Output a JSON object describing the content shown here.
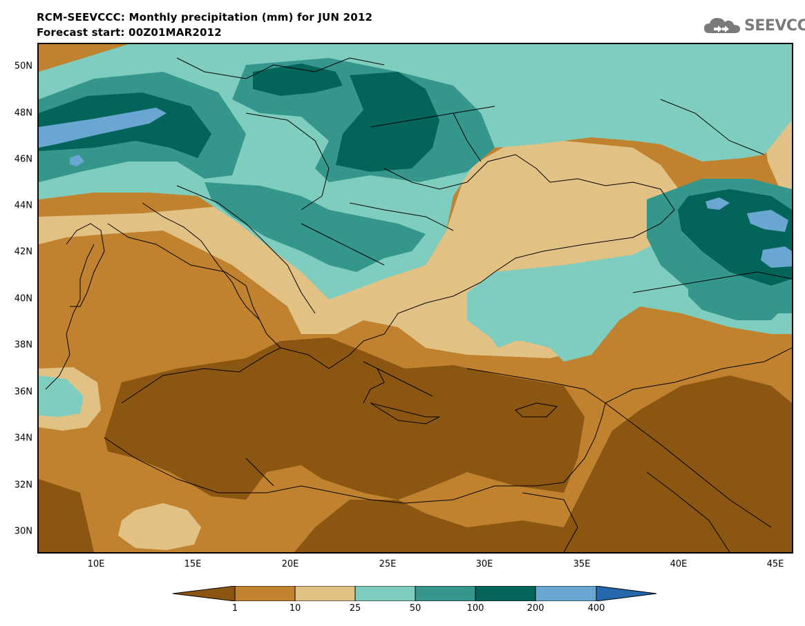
{
  "title": {
    "line1": "RCM-SEEVCCC: Monthly precipitation (mm) for JUN 2012",
    "line2": "Forecast start: 00Z01MAR2012"
  },
  "logo": {
    "text": "SEEVCCC",
    "icon": "cloud-icon"
  },
  "map": {
    "lat_ticks": [
      "50N",
      "48N",
      "46N",
      "44N",
      "42N",
      "40N",
      "38N",
      "36N",
      "34N",
      "32N",
      "30N"
    ],
    "lon_ticks": [
      "10E",
      "15E",
      "20E",
      "25E",
      "30E",
      "35E",
      "40E",
      "45E"
    ],
    "lat_range": [
      29,
      51
    ],
    "lon_range": [
      7,
      46
    ]
  },
  "colorbar": {
    "labels": [
      "1",
      "10",
      "25",
      "50",
      "100",
      "200",
      "400"
    ],
    "colors": [
      "#8b5512",
      "#c0822f",
      "#e2c185",
      "#7fcdbf",
      "#35968c",
      "#03655a",
      "#6aa6d2",
      "#2468ab"
    ]
  }
}
